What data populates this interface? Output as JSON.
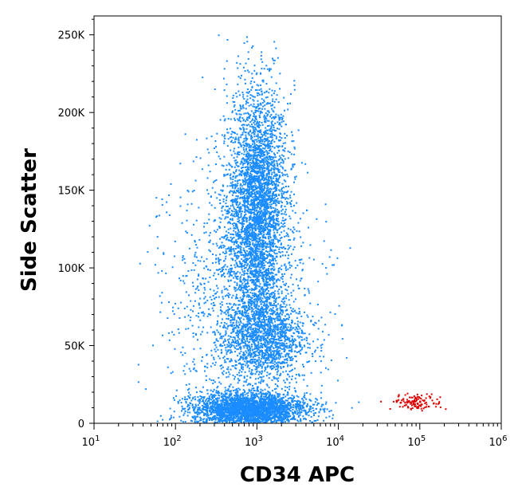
{
  "chart_data": {
    "type": "scatter",
    "title": "",
    "xlabel": "CD34 APC",
    "ylabel": "Side Scatter",
    "x_scale": "log",
    "xlim": [
      10,
      1000000
    ],
    "ylim": [
      0,
      262144
    ],
    "x_ticks": [
      {
        "value": 10,
        "base": "10",
        "exp": "1"
      },
      {
        "value": 100,
        "base": "10",
        "exp": "2"
      },
      {
        "value": 1000,
        "base": "10",
        "exp": "3"
      },
      {
        "value": 10000,
        "base": "10",
        "exp": "4"
      },
      {
        "value": 100000,
        "base": "10",
        "exp": "5"
      },
      {
        "value": 1000000,
        "base": "10",
        "exp": "6"
      }
    ],
    "y_ticks": [
      {
        "value": 0,
        "label": "0"
      },
      {
        "value": 50000,
        "label": "50K"
      },
      {
        "value": 100000,
        "label": "100K"
      },
      {
        "value": 150000,
        "label": "150K"
      },
      {
        "value": 200000,
        "label": "200K"
      },
      {
        "value": 250000,
        "label": "250K"
      }
    ],
    "grid": false,
    "legend": "none",
    "series": [
      {
        "color": "#1a8cff",
        "populations": [
          {
            "x_center": 1000,
            "y_center": 140000,
            "x_spread_decades": 0.18,
            "y_spread": 38000,
            "weight": 0.4
          },
          {
            "x_center": 1200,
            "y_center": 55000,
            "x_spread_decades": 0.25,
            "y_spread": 14000,
            "weight": 0.15
          },
          {
            "x_center": 800,
            "y_center": 10000,
            "x_spread_decades": 0.35,
            "y_spread": 5000,
            "weight": 0.3
          },
          {
            "x_center": 600,
            "y_center": 80000,
            "x_spread_decades": 0.45,
            "y_spread": 45000,
            "weight": 0.15
          }
        ]
      },
      {
        "color": "#dd0000",
        "populations": [
          {
            "x_center": 90000,
            "y_center": 14000,
            "x_spread_decades": 0.15,
            "y_spread": 2500,
            "weight": 1.0
          }
        ]
      }
    ]
  }
}
